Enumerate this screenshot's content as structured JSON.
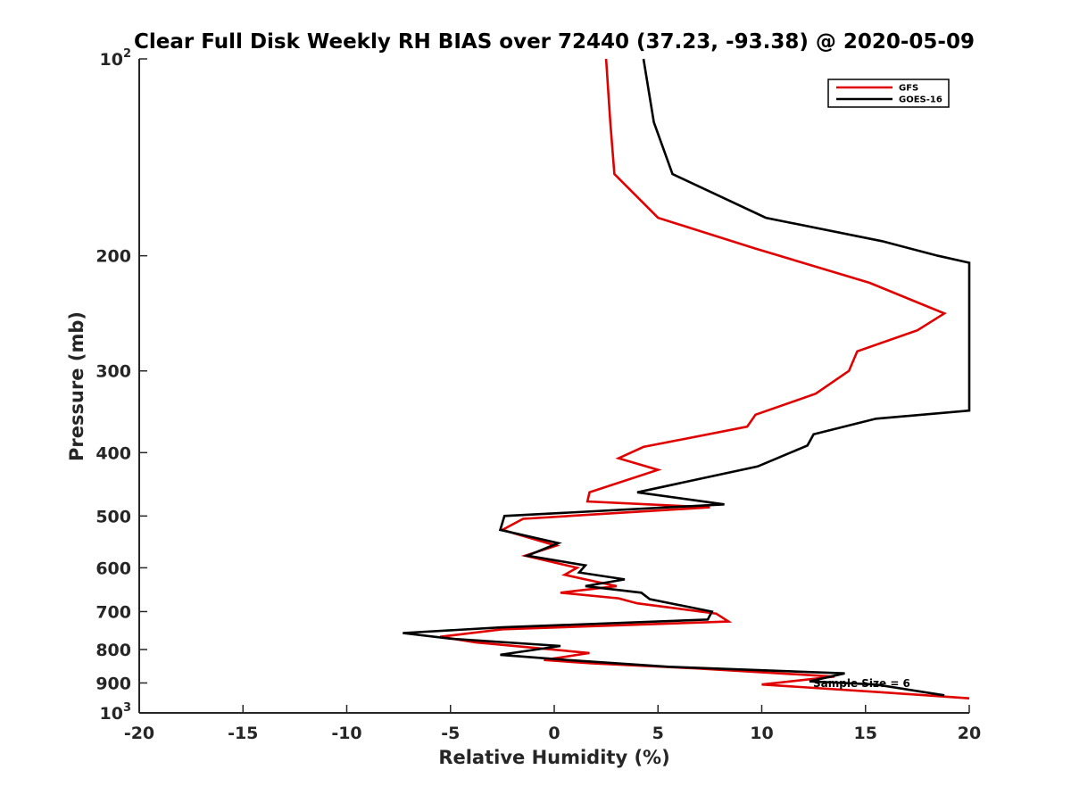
{
  "chart_data": {
    "type": "line",
    "title": "Clear Full Disk Weekly RH BIAS over 72440 (37.23, -93.38) @ 2020-05-09",
    "xlabel": "Relative Humidity (%)",
    "ylabel": "Pressure (mb)",
    "xlim": [
      -20,
      20
    ],
    "ylim": [
      100,
      1000
    ],
    "y_scale": "log",
    "y_reversed": true,
    "x_ticks": [
      -20,
      -15,
      -10,
      -5,
      0,
      5,
      10,
      15,
      20
    ],
    "x_tick_labels": [
      "-20",
      "-15",
      "-10",
      "-5",
      "0",
      "5",
      "10",
      "15",
      "20"
    ],
    "y_ticks": [
      100,
      200,
      300,
      400,
      500,
      600,
      700,
      800,
      900,
      1000
    ],
    "y_tick_labels": [
      {
        "base": "10",
        "exp": "2"
      },
      {
        "base": "200",
        "exp": ""
      },
      {
        "base": "300",
        "exp": ""
      },
      {
        "base": "400",
        "exp": ""
      },
      {
        "base": "500",
        "exp": ""
      },
      {
        "base": "600",
        "exp": ""
      },
      {
        "base": "700",
        "exp": ""
      },
      {
        "base": "800",
        "exp": ""
      },
      {
        "base": "900",
        "exp": ""
      },
      {
        "base": "10",
        "exp": "3"
      }
    ],
    "grid": false,
    "legend": {
      "position": "top-right"
    },
    "annotation": "Sample Size = 6",
    "series": [
      {
        "name": "GFS",
        "color": "#e00000",
        "points": [
          [
            2.5,
            100
          ],
          [
            2.7,
            125
          ],
          [
            2.9,
            150
          ],
          [
            5.0,
            175
          ],
          [
            9.7,
            195
          ],
          [
            15.2,
            220
          ],
          [
            18.8,
            245
          ],
          [
            17.5,
            260
          ],
          [
            14.6,
            280
          ],
          [
            14.2,
            300
          ],
          [
            12.6,
            325
          ],
          [
            9.7,
            350
          ],
          [
            9.3,
            365
          ],
          [
            4.3,
            392
          ],
          [
            3.1,
            408
          ],
          [
            5.0,
            425
          ],
          [
            1.7,
            460
          ],
          [
            1.6,
            475
          ],
          [
            7.5,
            485
          ],
          [
            -1.5,
            505
          ],
          [
            -2.5,
            525
          ],
          [
            0.1,
            555
          ],
          [
            -1.4,
            575
          ],
          [
            1.1,
            600
          ],
          [
            0.5,
            615
          ],
          [
            1.5,
            625
          ],
          [
            3.0,
            640
          ],
          [
            0.3,
            655
          ],
          [
            3.1,
            668
          ],
          [
            4.0,
            680
          ],
          [
            7.8,
            705
          ],
          [
            8.4,
            725
          ],
          [
            -2.5,
            745
          ],
          [
            -5.5,
            765
          ],
          [
            -3.8,
            780
          ],
          [
            1.7,
            810
          ],
          [
            -0.5,
            830
          ],
          [
            1.8,
            840
          ],
          [
            6.8,
            855
          ],
          [
            13.5,
            880
          ],
          [
            10.0,
            905
          ],
          [
            15.8,
            930
          ],
          [
            20.0,
            950
          ]
        ]
      },
      {
        "name": "GOES-16",
        "color": "#000000",
        "points": [
          [
            4.3,
            100
          ],
          [
            4.8,
            125
          ],
          [
            5.7,
            150
          ],
          [
            10.2,
            175
          ],
          [
            15.8,
            190
          ],
          [
            18.5,
            200
          ],
          [
            20.0,
            205
          ],
          [
            20.0,
            345
          ],
          [
            15.5,
            355
          ],
          [
            12.5,
            375
          ],
          [
            12.2,
            390
          ],
          [
            9.8,
            420
          ],
          [
            4.0,
            460
          ],
          [
            8.2,
            480
          ],
          [
            -2.4,
            500
          ],
          [
            -2.6,
            525
          ],
          [
            0.2,
            550
          ],
          [
            -1.3,
            575
          ],
          [
            1.5,
            595
          ],
          [
            1.2,
            610
          ],
          [
            3.4,
            625
          ],
          [
            1.5,
            640
          ],
          [
            4.2,
            655
          ],
          [
            4.6,
            670
          ],
          [
            7.6,
            700
          ],
          [
            7.4,
            720
          ],
          [
            -2.5,
            740
          ],
          [
            -7.3,
            755
          ],
          [
            -5.0,
            770
          ],
          [
            0.3,
            790
          ],
          [
            -2.6,
            815
          ],
          [
            0.6,
            830
          ],
          [
            5.5,
            850
          ],
          [
            14.0,
            870
          ],
          [
            12.3,
            895
          ],
          [
            15.5,
            905
          ],
          [
            18.8,
            940
          ]
        ]
      }
    ]
  }
}
